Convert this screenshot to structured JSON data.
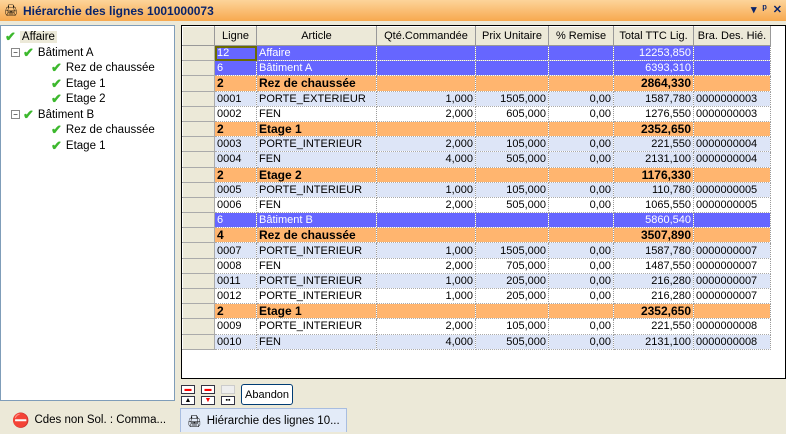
{
  "window": {
    "title": "Hiérarchie des lignes  1001000073",
    "controls": [
      "▾",
      "ᵖ",
      "✕"
    ]
  },
  "tree": [
    {
      "label": "Affaire",
      "level": 0
    },
    {
      "label": "Bâtiment A",
      "level": 1
    },
    {
      "label": "Rez de chaussée",
      "level": 2
    },
    {
      "label": "Etage 1",
      "level": 2
    },
    {
      "label": "Etage 2",
      "level": 2
    },
    {
      "label": "Bâtiment B",
      "level": 1
    },
    {
      "label": "Rez de chaussée",
      "level": 2
    },
    {
      "label": "Etage 1",
      "level": 2
    }
  ],
  "grid": {
    "columns": [
      "Ligne",
      "Article",
      "Qté.Commandée",
      "Prix Unitaire",
      "% Remise",
      "Total TTC Lig.",
      "Bra. Des. Hié."
    ],
    "rows": [
      {
        "type": "aff",
        "cells": [
          "12",
          "Affaire",
          "",
          "",
          "",
          "12253,850",
          ""
        ]
      },
      {
        "type": "aff",
        "cells": [
          "6",
          "Bâtiment A",
          "",
          "",
          "",
          "6393,310",
          ""
        ]
      },
      {
        "type": "sec",
        "cells": [
          "2",
          "Rez de chaussée",
          "",
          "",
          "",
          "2864,330",
          ""
        ]
      },
      {
        "type": "alt",
        "cells": [
          "0001",
          "PORTE_EXTERIEUR",
          "1,000",
          "1505,000",
          "0,00",
          "1587,780",
          "0000000003"
        ]
      },
      {
        "type": "wht",
        "cells": [
          "0002",
          "FEN",
          "2,000",
          "605,000",
          "0,00",
          "1276,550",
          "0000000003"
        ]
      },
      {
        "type": "sec",
        "cells": [
          "2",
          "Etage 1",
          "",
          "",
          "",
          "2352,650",
          ""
        ]
      },
      {
        "type": "alt",
        "cells": [
          "0003",
          "PORTE_INTERIEUR",
          "2,000",
          "105,000",
          "0,00",
          "221,550",
          "0000000004"
        ]
      },
      {
        "type": "alt",
        "cells": [
          "0004",
          "FEN",
          "4,000",
          "505,000",
          "0,00",
          "2131,100",
          "0000000004"
        ]
      },
      {
        "type": "sec",
        "cells": [
          "2",
          "Etage 2",
          "",
          "",
          "",
          "1176,330",
          ""
        ]
      },
      {
        "type": "alt",
        "cells": [
          "0005",
          "PORTE_INTERIEUR",
          "1,000",
          "105,000",
          "0,00",
          "110,780",
          "0000000005"
        ]
      },
      {
        "type": "wht",
        "cells": [
          "0006",
          "FEN",
          "2,000",
          "505,000",
          "0,00",
          "1065,550",
          "0000000005"
        ]
      },
      {
        "type": "aff",
        "cells": [
          "6",
          "Bâtiment B",
          "",
          "",
          "",
          "5860,540",
          ""
        ]
      },
      {
        "type": "sec",
        "cells": [
          "4",
          "Rez de chaussée",
          "",
          "",
          "",
          "3507,890",
          ""
        ]
      },
      {
        "type": "alt",
        "cells": [
          "0007",
          "PORTE_INTERIEUR",
          "1,000",
          "1505,000",
          "0,00",
          "1587,780",
          "0000000007"
        ]
      },
      {
        "type": "wht",
        "cells": [
          "0008",
          "FEN",
          "2,000",
          "705,000",
          "0,00",
          "1487,550",
          "0000000007"
        ]
      },
      {
        "type": "alt",
        "cells": [
          "0011",
          "PORTE_INTERIEUR",
          "1,000",
          "205,000",
          "0,00",
          "216,280",
          "0000000007"
        ]
      },
      {
        "type": "wht",
        "cells": [
          "0012",
          "PORTE_INTERIEUR",
          "1,000",
          "205,000",
          "0,00",
          "216,280",
          "0000000007"
        ]
      },
      {
        "type": "sec",
        "cells": [
          "2",
          "Etage 1",
          "",
          "",
          "",
          "2352,650",
          ""
        ]
      },
      {
        "type": "wht",
        "cells": [
          "0009",
          "PORTE_INTERIEUR",
          "2,000",
          "105,000",
          "0,00",
          "221,550",
          "0000000008"
        ]
      },
      {
        "type": "alt",
        "cells": [
          "0010",
          "FEN",
          "4,000",
          "505,000",
          "0,00",
          "2131,100",
          "0000000008"
        ]
      }
    ]
  },
  "toolbar": {
    "abandon_label": "Abandon"
  },
  "tabs": [
    {
      "label": "Cdes non Sol. : Comma...",
      "icon": "no-entry-icon",
      "active": false
    },
    {
      "label": "Hiérarchie des lignes  10...",
      "icon": "printer-icon",
      "active": true
    }
  ],
  "colors": {
    "group": "#6666ff",
    "section": "#ffb56f",
    "alt": "#dde5f7"
  }
}
